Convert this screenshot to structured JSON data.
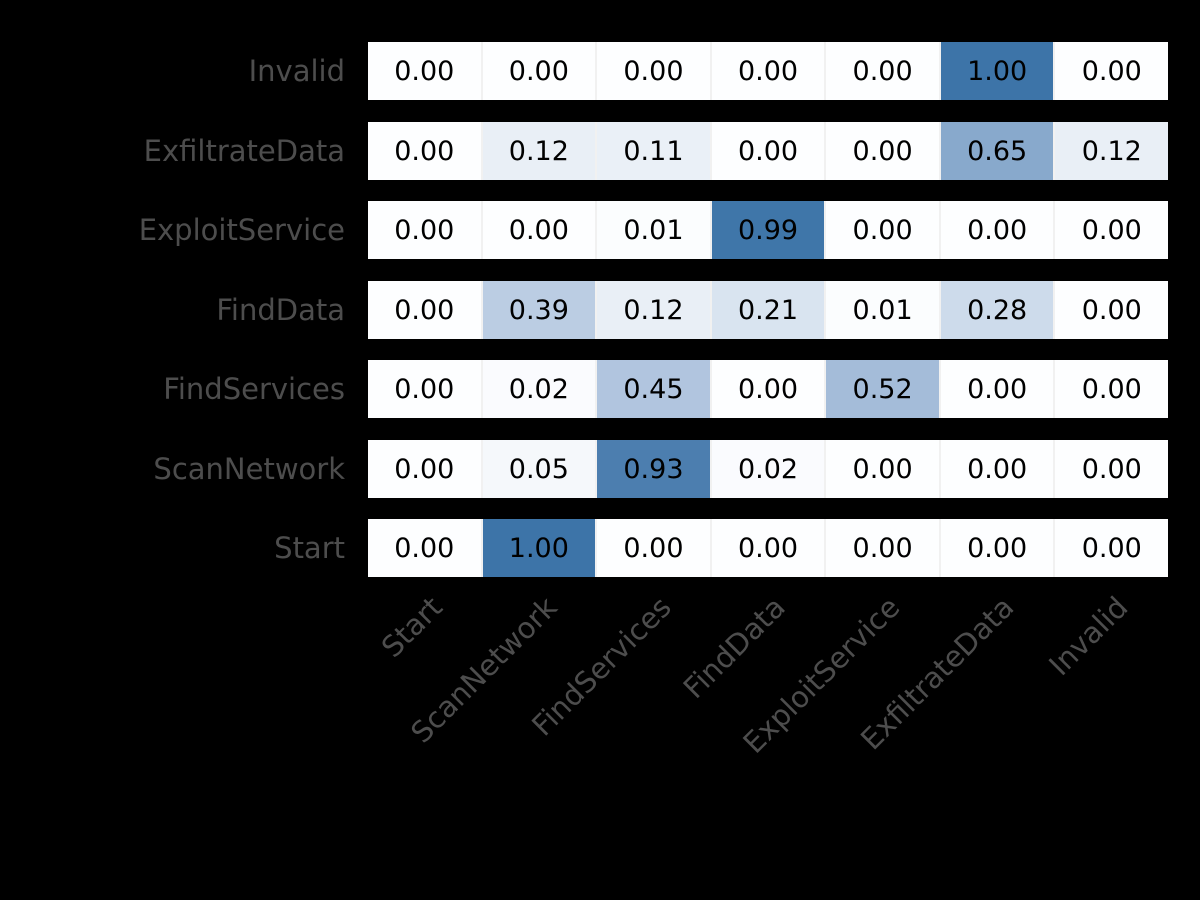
{
  "figure": {
    "title": "",
    "description_visible_text_only": true
  },
  "chart_data": {
    "type": "heatmap",
    "rows": [
      "Invalid",
      "ExfiltrateData",
      "ExploitService",
      "FindData",
      "FindServices",
      "ScanNetwork",
      "Start"
    ],
    "columns": [
      "Start",
      "ScanNetwork",
      "FindServices",
      "FindData",
      "ExploitService",
      "ExfiltrateData",
      "Invalid"
    ],
    "values": [
      [
        0.0,
        0.0,
        0.0,
        0.0,
        0.0,
        1.0,
        0.0
      ],
      [
        0.0,
        0.12,
        0.11,
        0.0,
        0.0,
        0.65,
        0.12
      ],
      [
        0.0,
        0.0,
        0.01,
        0.99,
        0.0,
        0.0,
        0.0
      ],
      [
        0.0,
        0.39,
        0.12,
        0.21,
        0.01,
        0.28,
        0.0
      ],
      [
        0.0,
        0.02,
        0.45,
        0.0,
        0.52,
        0.0,
        0.0
      ],
      [
        0.0,
        0.05,
        0.93,
        0.02,
        0.0,
        0.0,
        0.0
      ],
      [
        0.0,
        1.0,
        0.0,
        0.0,
        0.0,
        0.0,
        0.0
      ]
    ],
    "value_decimals": 2,
    "value_range": [
      0,
      1
    ],
    "x_tick_rotation_deg": 45,
    "legend": "none",
    "colors": {
      "colormap_low": "#fdfeff",
      "colormap_mid": "#a8bfdb",
      "colormap_high": "#3d74a8",
      "cell_text": "#000000",
      "axis_label": "#4d4d4d",
      "cell_gap_line": "#f1f1f1",
      "background": "#000000"
    }
  }
}
